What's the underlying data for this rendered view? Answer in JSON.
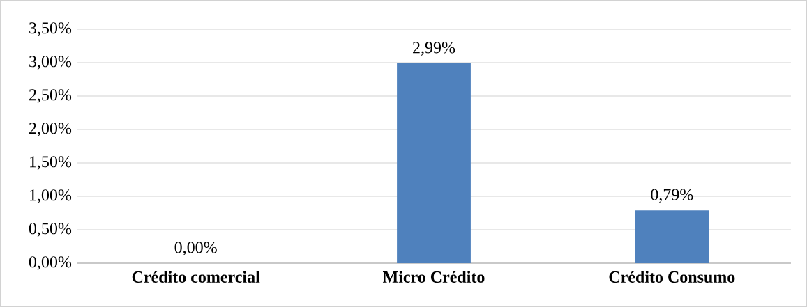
{
  "chart_data": {
    "type": "bar",
    "categories": [
      "Crédito comercial",
      "Micro Crédito",
      "Crédito Consumo"
    ],
    "values": [
      0,
      2.99,
      0.79
    ],
    "value_labels": [
      "0,00%",
      "2,99%",
      "0,79%"
    ],
    "color": "#4f81bd",
    "ylim": [
      0,
      3.5
    ],
    "yticks": [
      {
        "value": 0,
        "label": "0,00%"
      },
      {
        "value": 0.5,
        "label": "0,50%"
      },
      {
        "value": 1,
        "label": "1,00%"
      },
      {
        "value": 1.5,
        "label": "1,50%"
      },
      {
        "value": 2,
        "label": "2,00%"
      },
      {
        "value": 2.5,
        "label": "2,50%"
      },
      {
        "value": 3,
        "label": "3,00%"
      },
      {
        "value": 3.5,
        "label": "3,50%"
      }
    ],
    "grid": "y"
  }
}
